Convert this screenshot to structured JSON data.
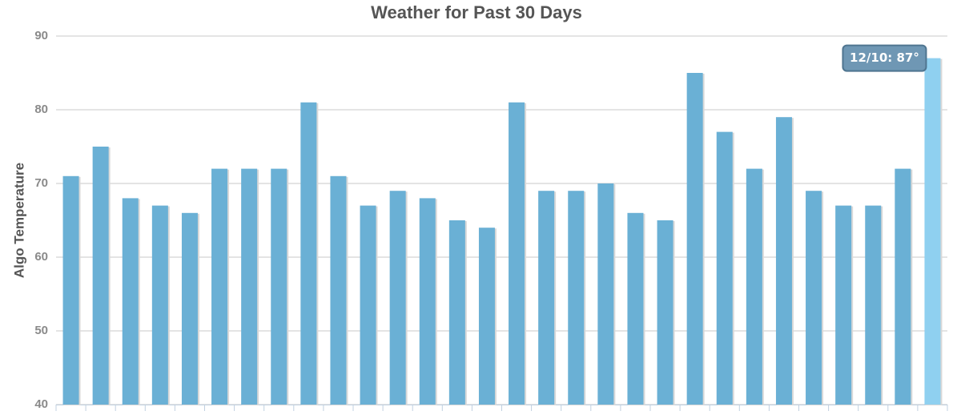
{
  "chart_data": {
    "type": "bar",
    "title": "Weather for Past 30 Days",
    "y_label": "Algo Temperature",
    "categories": [
      null,
      null,
      null,
      null,
      null,
      null,
      null,
      null,
      null,
      null,
      null,
      null,
      null,
      null,
      null,
      null,
      null,
      null,
      null,
      null,
      null,
      null,
      null,
      null,
      null,
      null,
      null,
      null,
      null,
      null
    ],
    "values": [
      71,
      75,
      68,
      67,
      66,
      72,
      72,
      72,
      81,
      71,
      67,
      69,
      68,
      65,
      64,
      81,
      69,
      69,
      70,
      66,
      65,
      85,
      77,
      72,
      79,
      69,
      67,
      67,
      72,
      87
    ],
    "color": "#6ab0d5",
    "highlighted": 29,
    "highlight_color": "#8fd0f0",
    "tooltip": "12/10: 87°",
    "ylim": [
      40,
      90
    ],
    "yticks": [
      40,
      50,
      60,
      70,
      80,
      90
    ],
    "grid": true
  }
}
